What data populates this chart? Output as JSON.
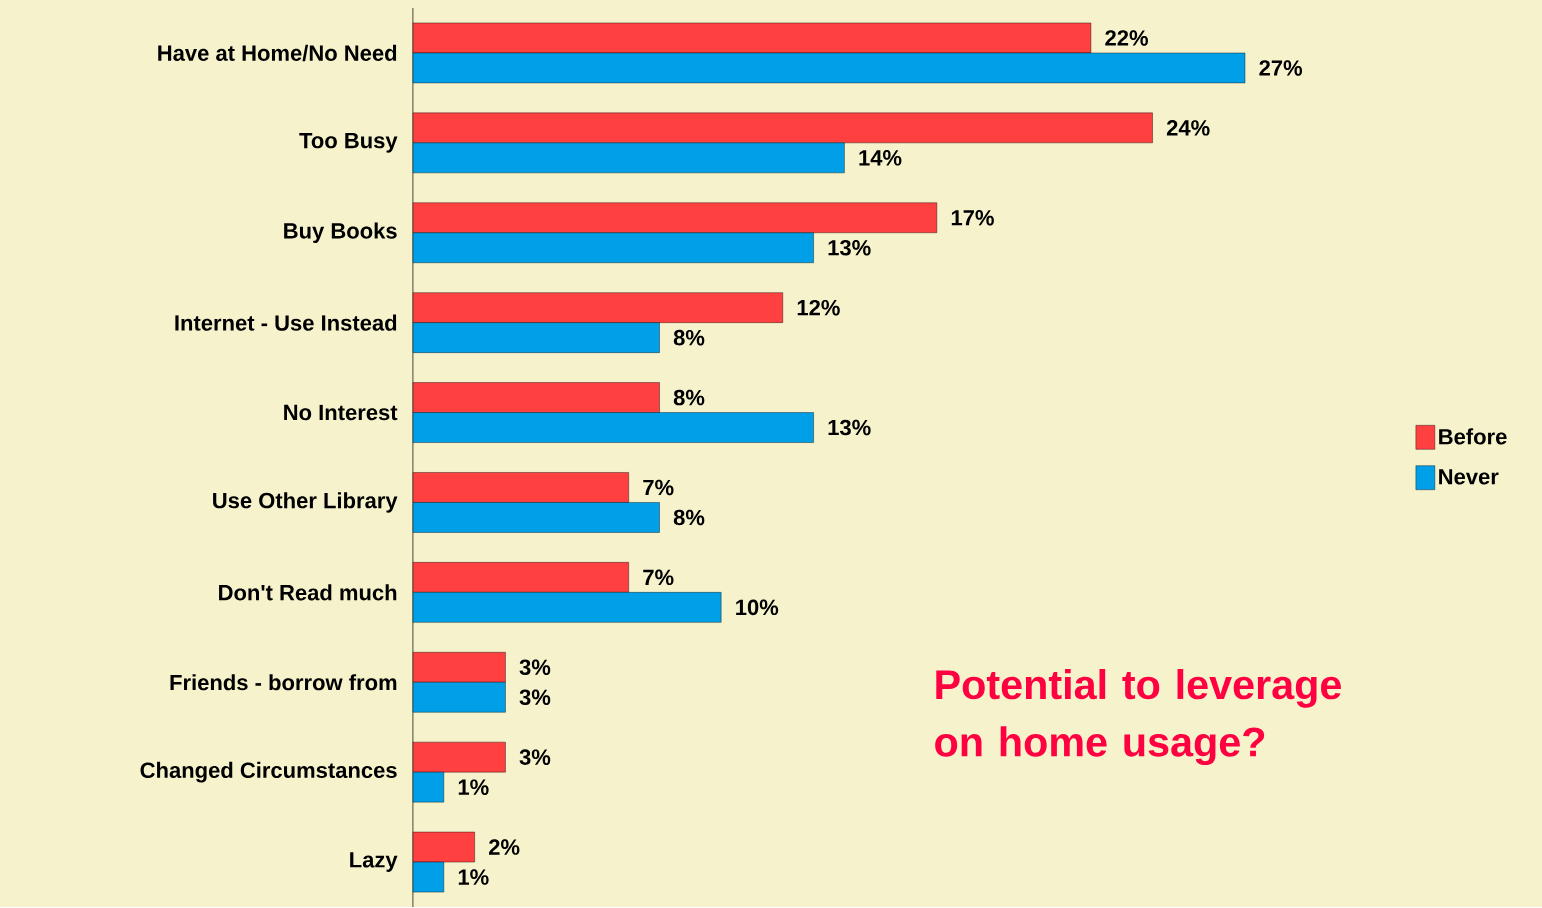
{
  "chart_data": {
    "type": "bar",
    "orientation": "horizontal",
    "categories": [
      "Have at Home/No Need",
      "Too Busy",
      "Buy Books",
      "Internet - Use Instead",
      "No Interest",
      "Use Other Library",
      "Don't Read much",
      "Friends - borrow from",
      "Changed Circumstances",
      "Lazy"
    ],
    "series": [
      {
        "name": "Before",
        "color": "#ff4040",
        "values": [
          22,
          24,
          17,
          12,
          8,
          7,
          7,
          3,
          3,
          2
        ],
        "value_labels": [
          "22%",
          "24%",
          "17%",
          "12%",
          "8%",
          "7%",
          "7%",
          "3%",
          "3%",
          "2%"
        ]
      },
      {
        "name": "Never",
        "color": "#00a0e8",
        "values": [
          27,
          14,
          13,
          8,
          13,
          8,
          10,
          3,
          1,
          1
        ],
        "value_labels": [
          "27%",
          "14%",
          "13%",
          "8%",
          "13%",
          "8%",
          "10%",
          "3%",
          "1%",
          "1%"
        ]
      }
    ],
    "legend": "right",
    "annotations": [
      "Potential to leverage on home usage?"
    ]
  }
}
